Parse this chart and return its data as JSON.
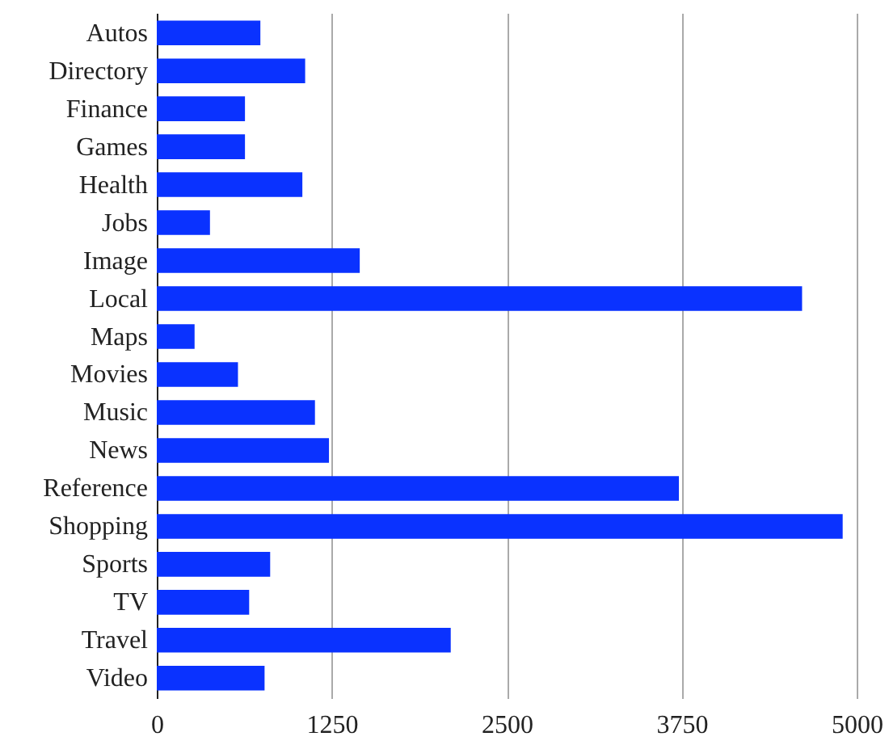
{
  "chart_data": {
    "type": "bar",
    "orientation": "horizontal",
    "categories": [
      "Autos",
      "Directory",
      "Finance",
      "Games",
      "Health",
      "Jobs",
      "Image",
      "Local",
      "Maps",
      "Movies",
      "Music",
      "News",
      "Reference",
      "Shopping",
      "Sports",
      "TV",
      "Travel",
      "Video"
    ],
    "values": [
      740,
      1060,
      630,
      630,
      1040,
      380,
      1450,
      4610,
      270,
      580,
      1130,
      1230,
      3730,
      4900,
      810,
      660,
      2100,
      770
    ],
    "color": "#0a32ff",
    "xlim": [
      0,
      5000
    ],
    "xticks": [
      0,
      1250,
      2500,
      3750,
      5000
    ],
    "grid": "x"
  }
}
